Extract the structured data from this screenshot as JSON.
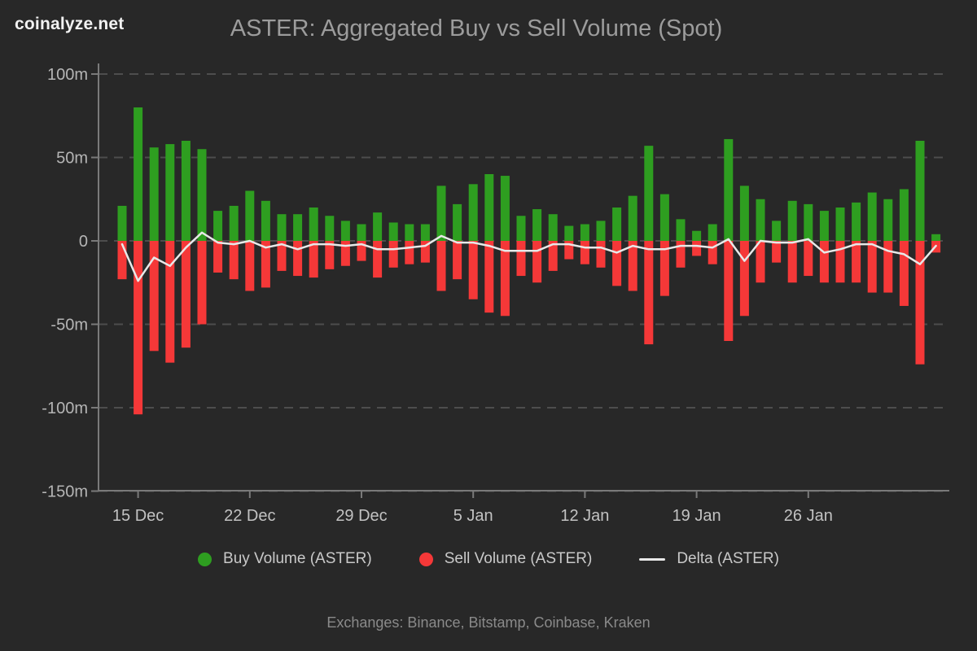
{
  "header": {
    "logo": "coinalyze.net",
    "title": "ASTER: Aggregated Buy vs Sell Volume (Spot)"
  },
  "legend": [
    {
      "label": "Buy Volume (ASTER)",
      "swatch": "dot",
      "color": "#2e9e20"
    },
    {
      "label": "Sell Volume (ASTER)",
      "swatch": "dot",
      "color": "#f53838"
    },
    {
      "label": "Delta (ASTER)",
      "swatch": "line",
      "color": "#e8e8e8"
    }
  ],
  "footer": {
    "exchanges_note": "Exchanges: Binance, Bitstamp, Coinbase, Kraken"
  },
  "colors": {
    "background": "#282828",
    "buy": "#2e9e20",
    "sell": "#f53838",
    "delta": "#e8e8e8",
    "grid": "#4d4d4d",
    "axis": "#7a7a7a",
    "y_label": "#b5b5b5",
    "x_label": "#c2c2c2",
    "title": "#9c9c9c"
  },
  "chart_data": {
    "type": "bar",
    "title": "ASTER: Aggregated Buy vs Sell Volume (Spot)",
    "unit": "millions (volume)",
    "grid": true,
    "legend_position": "bottom",
    "ylim": [
      -150,
      100
    ],
    "y_tick_values": [
      100,
      50,
      0,
      -50,
      -100,
      -150
    ],
    "y_tick_labels": [
      "100m",
      "50m",
      "0",
      "-50m",
      "-100m",
      "-150m"
    ],
    "x_tick_indices": [
      1,
      8,
      15,
      22,
      29,
      36,
      43
    ],
    "x_tick_labels": [
      "15 Dec",
      "22 Dec",
      "29 Dec",
      "5 Jan",
      "12 Jan",
      "19 Jan",
      "26 Jan"
    ],
    "categories": [
      "14 Dec",
      "15 Dec",
      "16 Dec",
      "17 Dec",
      "18 Dec",
      "19 Dec",
      "20 Dec",
      "21 Dec",
      "22 Dec",
      "23 Dec",
      "24 Dec",
      "25 Dec",
      "26 Dec",
      "27 Dec",
      "28 Dec",
      "29 Dec",
      "30 Dec",
      "31 Dec",
      "1 Jan",
      "2 Jan",
      "3 Jan",
      "4 Jan",
      "5 Jan",
      "6 Jan",
      "7 Jan",
      "8 Jan",
      "9 Jan",
      "10 Jan",
      "11 Jan",
      "12 Jan",
      "13 Jan",
      "14 Jan",
      "15 Jan",
      "16 Jan",
      "17 Jan",
      "18 Jan",
      "19 Jan",
      "20 Jan",
      "21 Jan",
      "22 Jan",
      "23 Jan",
      "24 Jan",
      "25 Jan",
      "26 Jan",
      "27 Jan",
      "28 Jan",
      "29 Jan",
      "30 Jan",
      "31 Jan",
      "1 Feb",
      "2 Feb",
      "3 Feb"
    ],
    "series": [
      {
        "name": "Buy Volume (ASTER)",
        "color": "#2e9e20",
        "values": [
          21,
          80,
          56,
          58,
          60,
          55,
          18,
          21,
          30,
          24,
          16,
          16,
          20,
          15,
          12,
          10,
          17,
          11,
          10,
          10,
          33,
          22,
          34,
          40,
          39,
          15,
          19,
          16,
          9,
          10,
          12,
          20,
          27,
          57,
          28,
          13,
          6,
          10,
          61,
          33,
          25,
          12,
          24,
          22,
          18,
          20,
          23,
          29,
          25,
          31,
          60,
          4
        ]
      },
      {
        "name": "Sell Volume (ASTER)",
        "color": "#f53838",
        "values": [
          -23,
          -104,
          -66,
          -73,
          -64,
          -50,
          -19,
          -23,
          -30,
          -28,
          -18,
          -21,
          -22,
          -17,
          -15,
          -12,
          -22,
          -16,
          -14,
          -13,
          -30,
          -23,
          -35,
          -43,
          -45,
          -21,
          -25,
          -18,
          -11,
          -14,
          -16,
          -27,
          -30,
          -62,
          -33,
          -16,
          -9,
          -14,
          -60,
          -45,
          -25,
          -13,
          -25,
          -21,
          -25,
          -25,
          -25,
          -31,
          -31,
          -39,
          -74,
          -7
        ]
      },
      {
        "name": "Delta (ASTER)",
        "color": "#e8e8e8",
        "style": "line",
        "values": [
          -2,
          -24,
          -10,
          -15,
          -4,
          5,
          -1,
          -2,
          0,
          -4,
          -2,
          -5,
          -2,
          -2,
          -3,
          -2,
          -5,
          -5,
          -4,
          -3,
          3,
          -1,
          -1,
          -3,
          -6,
          -6,
          -6,
          -2,
          -2,
          -4,
          -4,
          -7,
          -3,
          -5,
          -5,
          -3,
          -3,
          -4,
          1,
          -12,
          0,
          -1,
          -1,
          1,
          -7,
          -5,
          -2,
          -2,
          -6,
          -8,
          -14,
          -3
        ]
      }
    ]
  }
}
